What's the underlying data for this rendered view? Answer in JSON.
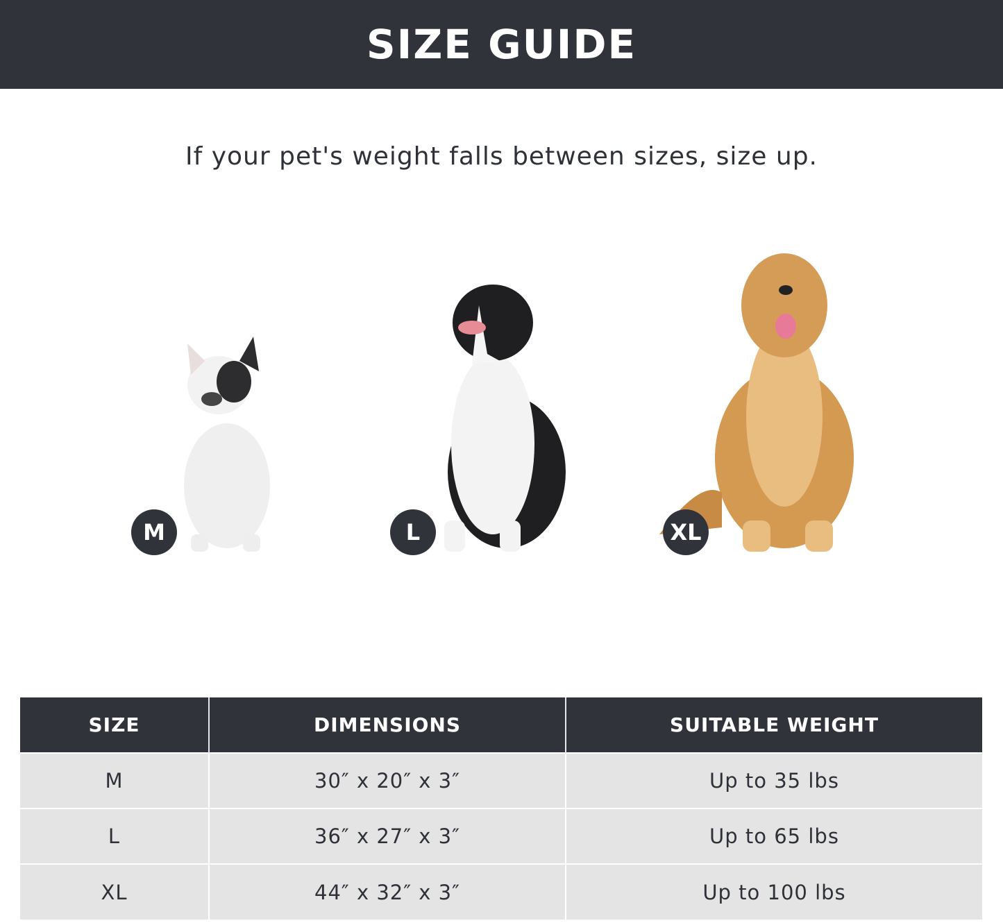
{
  "header": {
    "title": "SIZE GUIDE"
  },
  "subtitle": "If your pet's weight falls between sizes, size up.",
  "dogs": [
    {
      "badge": "M",
      "breed_icon": "french-bulldog-image"
    },
    {
      "badge": "L",
      "breed_icon": "border-collie-image"
    },
    {
      "badge": "XL",
      "breed_icon": "golden-retriever-image"
    }
  ],
  "table": {
    "headers": [
      "SIZE",
      "DIMENSIONS",
      "SUITABLE WEIGHT"
    ],
    "rows": [
      [
        "M",
        "30″ x 20″ x 3″",
        "Up to 35 lbs"
      ],
      [
        "L",
        "36″ x 27″ x 3″",
        "Up to 65 lbs"
      ],
      [
        "XL",
        "44″ x 32″ x 3″",
        "Up to 100 lbs"
      ]
    ]
  },
  "colors": {
    "dark": "#31333b",
    "row": "#e4e4e4"
  }
}
